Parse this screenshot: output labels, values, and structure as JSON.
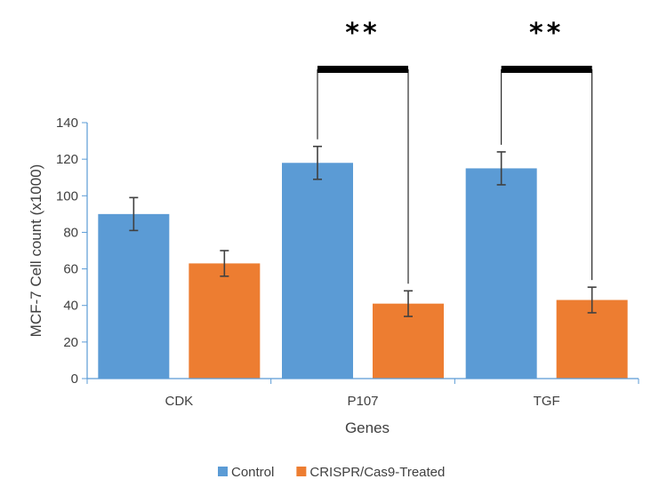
{
  "chart_data": {
    "type": "bar",
    "title": "",
    "xlabel": "Genes",
    "ylabel": "MCF-7 Cell count (x1000)",
    "categories": [
      "CDK",
      "P107",
      "TGF"
    ],
    "ylim": [
      0,
      140
    ],
    "yticks": [
      0,
      20,
      40,
      60,
      80,
      100,
      120,
      140
    ],
    "grid": false,
    "legend_position": "bottom",
    "series": [
      {
        "name": "Control",
        "color": "#5B9BD5",
        "values": [
          90,
          118,
          115
        ],
        "errors": [
          9,
          9,
          9
        ]
      },
      {
        "name": "CRISPR/Cas9-Treated",
        "color": "#ED7D31",
        "values": [
          63,
          41,
          43
        ],
        "errors": [
          7,
          7,
          7
        ]
      }
    ],
    "significance": [
      {
        "category": "P107",
        "label": "**"
      },
      {
        "category": "TGF",
        "label": "**"
      }
    ]
  }
}
